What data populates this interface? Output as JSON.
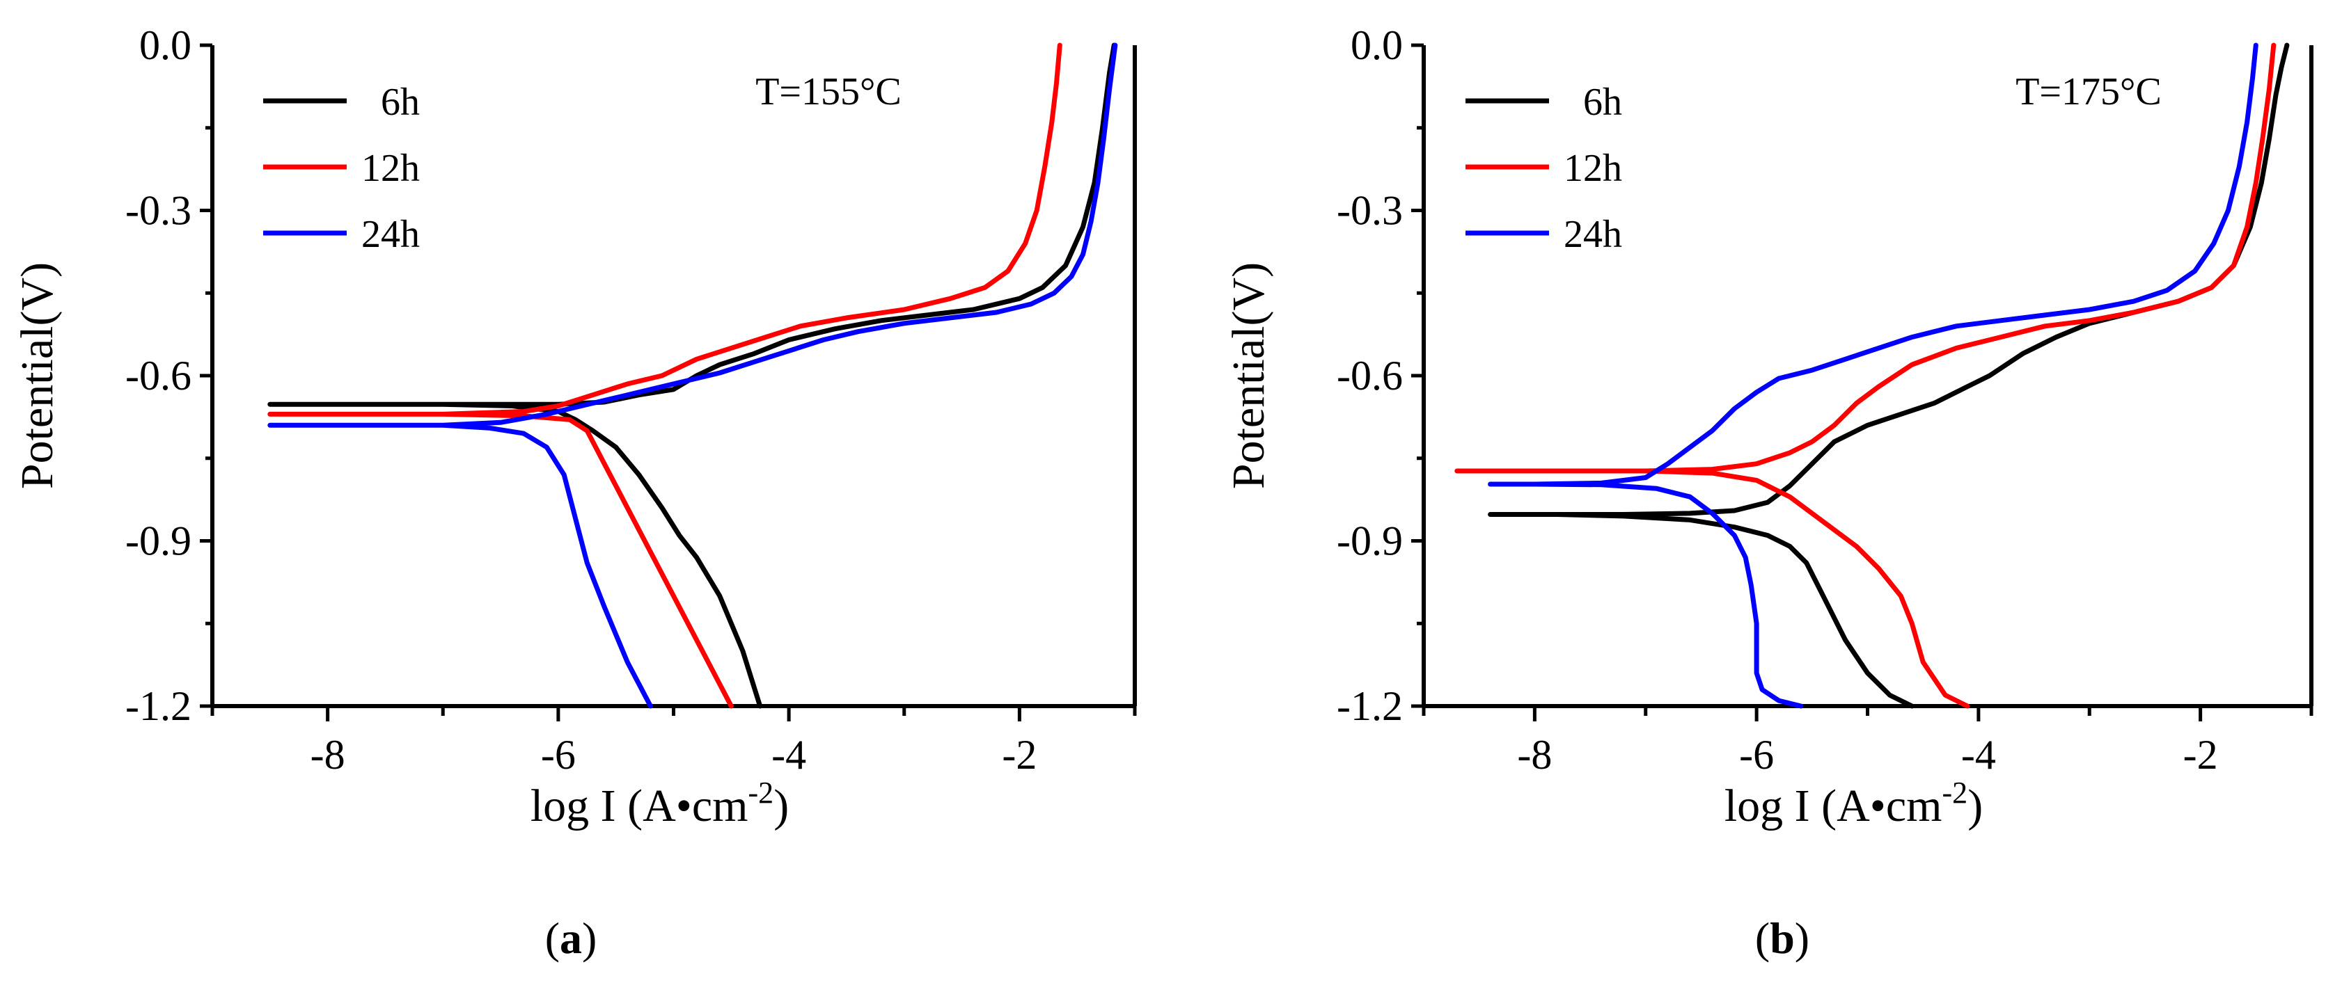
{
  "figure": {
    "panels": [
      {
        "label_open": "(",
        "label_letter": "a",
        "label_close": ")",
        "annotation": "T=155°C"
      },
      {
        "label_open": "(",
        "label_letter": "b",
        "label_close": ")",
        "annotation": "T=175°C"
      }
    ]
  },
  "chart_data": [
    {
      "type": "line",
      "title": "",
      "annotation": "T=155°C",
      "xlabel_main": "log I (A•cm",
      "xlabel_sup": "-2",
      "xlabel_close": ")",
      "ylabel": "Potential(V)",
      "xlim": [
        -9,
        -1
      ],
      "ylim": [
        -1.2,
        0.0
      ],
      "xticks": [
        -8,
        -6,
        -4,
        -2
      ],
      "xtick_labels": [
        "-8",
        "-6",
        "-4",
        "-2"
      ],
      "yticks": [
        0.0,
        -0.3,
        -0.6,
        -0.9,
        -1.2
      ],
      "ytick_labels": [
        "0.0",
        "-0.3",
        "-0.6",
        "-0.9",
        "-1.2"
      ],
      "legend_position": "top-left",
      "series": [
        {
          "name": "6h",
          "color": "#000000",
          "x": [
            -4.25,
            -4.4,
            -4.6,
            -4.8,
            -4.95,
            -5.1,
            -5.3,
            -5.5,
            -5.7,
            -5.85,
            -6.0,
            -6.4,
            -7.0,
            -7.8,
            -8.5,
            -7.8,
            -7.0,
            -6.4,
            -6.0,
            -5.6,
            -5.3,
            -5.0,
            -4.8,
            -4.6,
            -4.3,
            -4.0,
            -3.6,
            -3.2,
            -2.8,
            -2.4,
            -2.0,
            -1.8,
            -1.6,
            -1.45,
            -1.35,
            -1.28,
            -1.22,
            -1.18
          ],
          "y": [
            -1.2,
            -1.1,
            -1.0,
            -0.93,
            -0.89,
            -0.84,
            -0.78,
            -0.73,
            -0.7,
            -0.68,
            -0.665,
            -0.655,
            -0.652,
            -0.652,
            -0.652,
            -0.652,
            -0.652,
            -0.652,
            -0.652,
            -0.648,
            -0.635,
            -0.625,
            -0.6,
            -0.58,
            -0.56,
            -0.535,
            -0.515,
            -0.5,
            -0.49,
            -0.48,
            -0.46,
            -0.44,
            -0.4,
            -0.33,
            -0.25,
            -0.15,
            -0.05,
            0.0
          ]
        },
        {
          "name": "12h",
          "color": "#ff0000",
          "x": [
            -4.5,
            -4.8,
            -5.1,
            -5.4,
            -5.6,
            -5.75,
            -5.9,
            -6.3,
            -7.0,
            -8.0,
            -8.5,
            -8.0,
            -7.0,
            -6.3,
            -6.0,
            -5.7,
            -5.4,
            -5.1,
            -4.8,
            -4.5,
            -4.2,
            -3.9,
            -3.5,
            -3.0,
            -2.6,
            -2.3,
            -2.1,
            -1.95,
            -1.85,
            -1.78,
            -1.72,
            -1.68,
            -1.65
          ],
          "y": [
            -1.2,
            -1.08,
            -0.96,
            -0.84,
            -0.76,
            -0.7,
            -0.68,
            -0.673,
            -0.67,
            -0.67,
            -0.67,
            -0.67,
            -0.67,
            -0.665,
            -0.655,
            -0.635,
            -0.615,
            -0.6,
            -0.57,
            -0.55,
            -0.53,
            -0.51,
            -0.495,
            -0.48,
            -0.46,
            -0.44,
            -0.41,
            -0.36,
            -0.3,
            -0.22,
            -0.14,
            -0.07,
            0.0
          ]
        },
        {
          "name": "24h",
          "color": "#0000ff",
          "x": [
            -5.2,
            -5.4,
            -5.6,
            -5.75,
            -5.85,
            -5.95,
            -6.1,
            -6.3,
            -6.6,
            -7.0,
            -7.8,
            -8.5,
            -7.8,
            -7.0,
            -6.5,
            -6.1,
            -5.8,
            -5.5,
            -5.2,
            -4.9,
            -4.6,
            -4.3,
            -4.0,
            -3.7,
            -3.4,
            -3.0,
            -2.6,
            -2.2,
            -1.9,
            -1.7,
            -1.55,
            -1.45,
            -1.38,
            -1.32,
            -1.27,
            -1.22,
            -1.17
          ],
          "y": [
            -1.2,
            -1.12,
            -1.02,
            -0.94,
            -0.86,
            -0.78,
            -0.73,
            -0.705,
            -0.695,
            -0.69,
            -0.69,
            -0.69,
            -0.69,
            -0.69,
            -0.685,
            -0.67,
            -0.655,
            -0.64,
            -0.625,
            -0.61,
            -0.595,
            -0.575,
            -0.555,
            -0.535,
            -0.52,
            -0.505,
            -0.495,
            -0.485,
            -0.47,
            -0.45,
            -0.42,
            -0.38,
            -0.32,
            -0.25,
            -0.17,
            -0.08,
            0.0
          ]
        }
      ]
    },
    {
      "type": "line",
      "title": "",
      "annotation": "T=175°C",
      "xlabel_main": "log I (A•cm",
      "xlabel_sup": "-2",
      "xlabel_close": ")",
      "ylabel": "Potential(V)",
      "xlim": [
        -9,
        -1
      ],
      "ylim": [
        -1.2,
        0.0
      ],
      "xticks": [
        -8,
        -6,
        -4,
        -2
      ],
      "xtick_labels": [
        "-8",
        "-6",
        "-4",
        "-2"
      ],
      "yticks": [
        0.0,
        -0.3,
        -0.6,
        -0.9,
        -1.2
      ],
      "ytick_labels": [
        "0.0",
        "-0.3",
        "-0.6",
        "-0.9",
        "-1.2"
      ],
      "legend_position": "top-left",
      "series": [
        {
          "name": "6h",
          "color": "#000000",
          "x": [
            -4.6,
            -4.8,
            -5.0,
            -5.2,
            -5.4,
            -5.55,
            -5.7,
            -5.9,
            -6.2,
            -6.6,
            -7.2,
            -7.8,
            -8.4,
            -7.8,
            -7.2,
            -6.6,
            -6.2,
            -5.9,
            -5.7,
            -5.5,
            -5.3,
            -5.0,
            -4.7,
            -4.4,
            -4.1,
            -3.9,
            -3.6,
            -3.3,
            -3.0,
            -2.6,
            -2.2,
            -1.9,
            -1.7,
            -1.55,
            -1.45,
            -1.38,
            -1.32,
            -1.27,
            -1.22
          ],
          "y": [
            -1.2,
            -1.18,
            -1.14,
            -1.08,
            -1.0,
            -0.94,
            -0.91,
            -0.89,
            -0.875,
            -0.862,
            -0.855,
            -0.852,
            -0.852,
            -0.852,
            -0.852,
            -0.85,
            -0.845,
            -0.83,
            -0.8,
            -0.76,
            -0.72,
            -0.69,
            -0.67,
            -0.65,
            -0.62,
            -0.6,
            -0.56,
            -0.53,
            -0.505,
            -0.485,
            -0.465,
            -0.44,
            -0.4,
            -0.33,
            -0.25,
            -0.17,
            -0.09,
            -0.04,
            0.0
          ]
        },
        {
          "name": "12h",
          "color": "#ff0000",
          "x": [
            -4.1,
            -4.3,
            -4.5,
            -4.6,
            -4.7,
            -4.9,
            -5.1,
            -5.3,
            -5.5,
            -5.7,
            -6.0,
            -6.4,
            -7.0,
            -8.0,
            -8.7,
            -8.0,
            -7.0,
            -6.4,
            -6.0,
            -5.7,
            -5.5,
            -5.3,
            -5.1,
            -4.9,
            -4.6,
            -4.2,
            -3.8,
            -3.4,
            -3.0,
            -2.6,
            -2.2,
            -1.9,
            -1.7,
            -1.58,
            -1.5,
            -1.44,
            -1.38,
            -1.34
          ],
          "y": [
            -1.2,
            -1.18,
            -1.12,
            -1.05,
            -1.0,
            -0.95,
            -0.91,
            -0.88,
            -0.85,
            -0.82,
            -0.79,
            -0.777,
            -0.773,
            -0.773,
            -0.773,
            -0.773,
            -0.773,
            -0.77,
            -0.76,
            -0.74,
            -0.72,
            -0.69,
            -0.65,
            -0.62,
            -0.58,
            -0.55,
            -0.53,
            -0.51,
            -0.5,
            -0.485,
            -0.465,
            -0.44,
            -0.4,
            -0.33,
            -0.25,
            -0.17,
            -0.08,
            0.0
          ]
        },
        {
          "name": "24h",
          "color": "#0000ff",
          "x": [
            -5.6,
            -5.8,
            -5.95,
            -6.0,
            -6.0,
            -6.05,
            -6.1,
            -6.2,
            -6.4,
            -6.6,
            -6.9,
            -7.4,
            -8.0,
            -8.4,
            -8.0,
            -7.4,
            -7.0,
            -6.8,
            -6.6,
            -6.4,
            -6.2,
            -6.0,
            -5.8,
            -5.5,
            -5.2,
            -4.9,
            -4.6,
            -4.2,
            -3.8,
            -3.4,
            -3.0,
            -2.6,
            -2.3,
            -2.05,
            -1.88,
            -1.75,
            -1.65,
            -1.58,
            -1.53,
            -1.5
          ],
          "y": [
            -1.2,
            -1.19,
            -1.17,
            -1.14,
            -1.05,
            -0.98,
            -0.93,
            -0.89,
            -0.85,
            -0.82,
            -0.805,
            -0.798,
            -0.797,
            -0.797,
            -0.797,
            -0.795,
            -0.785,
            -0.76,
            -0.73,
            -0.7,
            -0.66,
            -0.63,
            -0.605,
            -0.59,
            -0.57,
            -0.55,
            -0.53,
            -0.51,
            -0.5,
            -0.49,
            -0.48,
            -0.465,
            -0.445,
            -0.41,
            -0.36,
            -0.3,
            -0.22,
            -0.14,
            -0.06,
            0.0
          ]
        }
      ]
    }
  ]
}
